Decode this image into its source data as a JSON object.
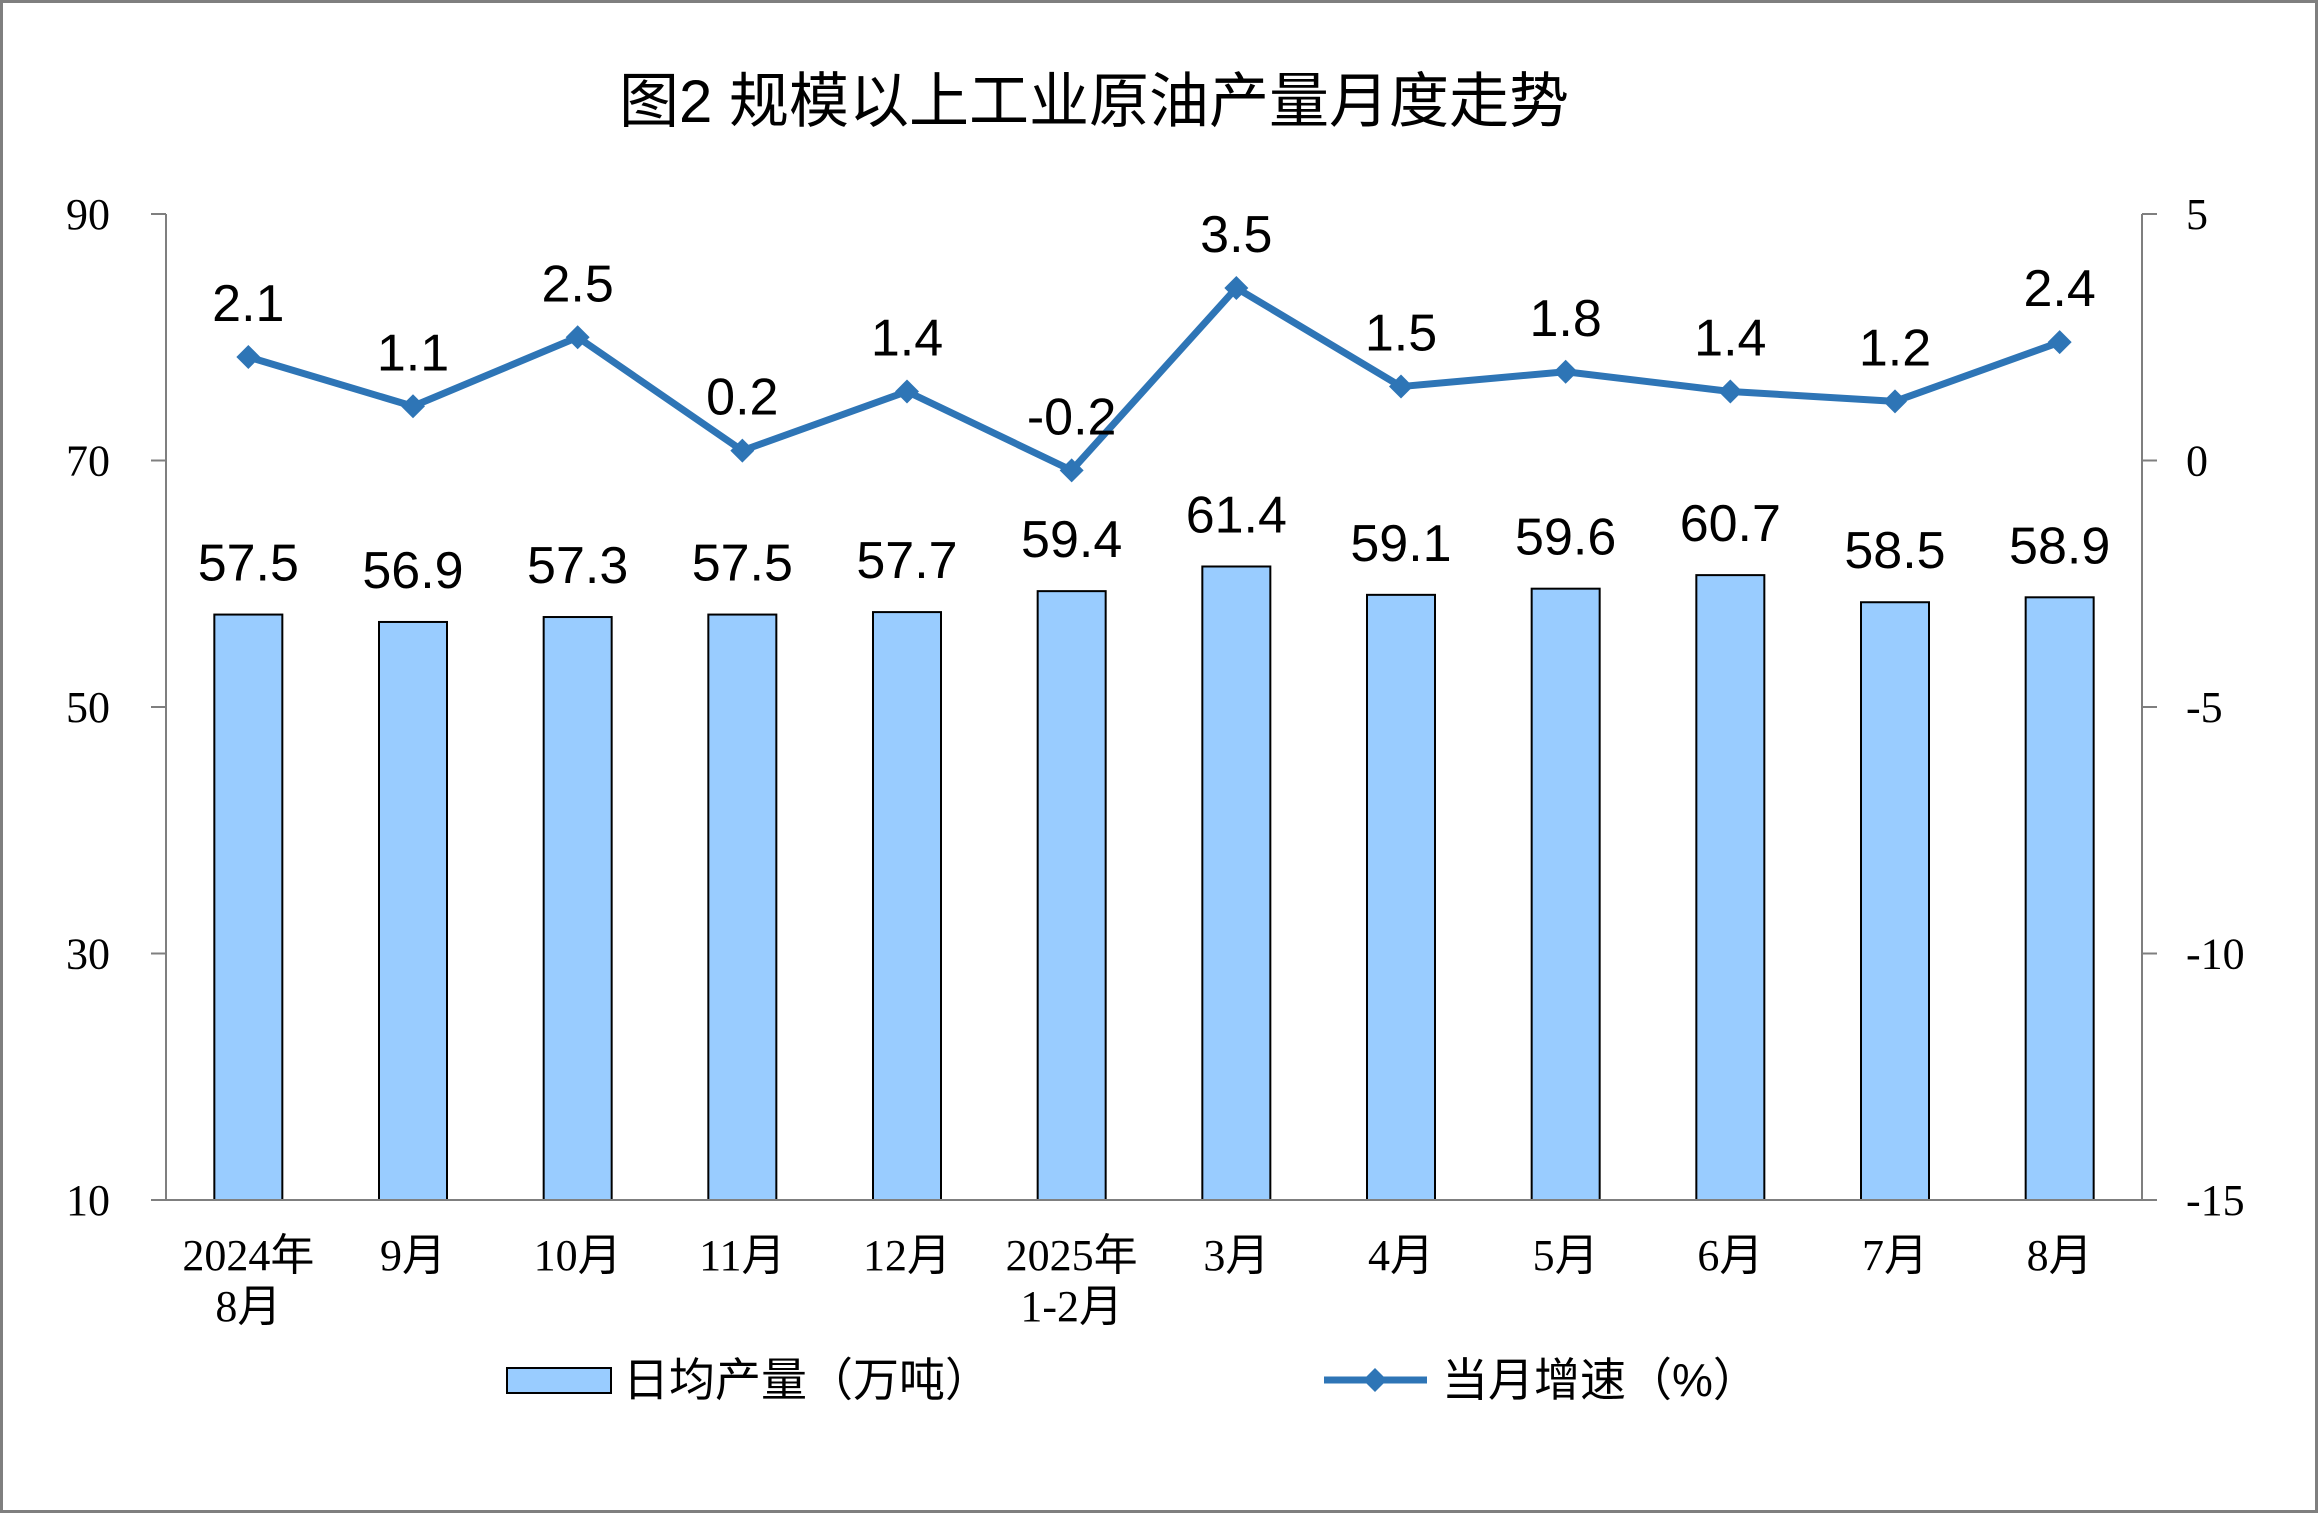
{
  "chart_data": {
    "type": "bar",
    "title": "图2 规模以上工业原油产量月度走势",
    "categories": [
      "2024年8月",
      "9月",
      "10月",
      "11月",
      "12月",
      "2025年1-2月",
      "3月",
      "4月",
      "5月",
      "6月",
      "7月",
      "8月"
    ],
    "series": [
      {
        "name": "日均产量（万吨）",
        "type": "bar",
        "axis": "left",
        "values": [
          57.5,
          56.9,
          57.3,
          57.5,
          57.7,
          59.4,
          61.4,
          59.1,
          59.6,
          60.7,
          58.5,
          58.9
        ],
        "color": "#99CCFF",
        "edge_color": "#000000"
      },
      {
        "name": "当月增速（%）",
        "type": "line",
        "axis": "right",
        "marker": "diamond",
        "values": [
          2.1,
          1.1,
          2.5,
          0.2,
          1.4,
          -0.2,
          3.5,
          1.5,
          1.8,
          1.4,
          1.2,
          2.4
        ],
        "color": "#2E75B6"
      }
    ],
    "y_left": {
      "ylim": [
        10,
        90
      ],
      "ticks": [
        10,
        30,
        50,
        70,
        90
      ]
    },
    "y_right": {
      "ylim": [
        -15,
        5
      ],
      "ticks": [
        -15,
        -10,
        -5,
        0,
        5
      ]
    },
    "grid": false,
    "legend": "bottom",
    "data_labels": true
  }
}
